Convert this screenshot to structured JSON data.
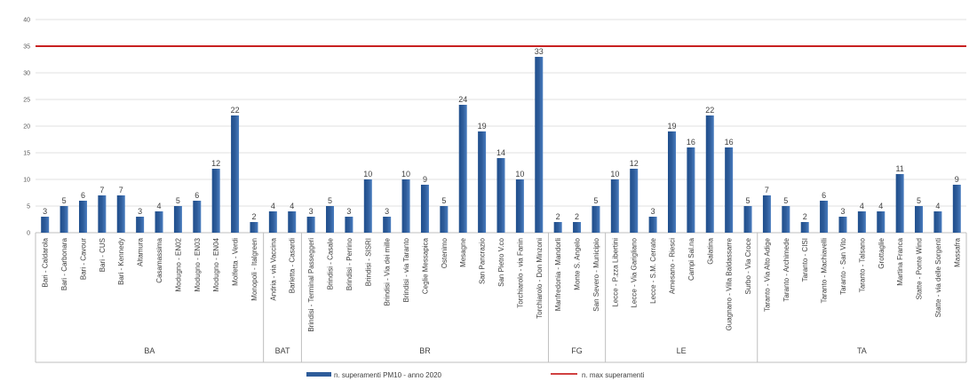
{
  "chart_data": {
    "type": "bar",
    "ylim": [
      0,
      40
    ],
    "yticks": [
      0,
      5,
      10,
      15,
      20,
      25,
      30,
      35,
      40
    ],
    "grid": true,
    "legend_position": "bottom",
    "categories": [
      "Bari - Caldarola",
      "Bari - Carbonara",
      "Bari - Cavour",
      "Bari - CUS",
      "Bari - Kennedy",
      "Altamura",
      "Casamassima",
      "Modugno - EN02",
      "Modugno - EN03",
      "Modugno - EN04",
      "Molfetta - Verdi",
      "Monopoli - Italgreen",
      "Andria - via Vaccina",
      "Barletta - Casardi",
      "Brindisi - Terminal Passeggeri",
      "Brindisi - Casale",
      "Brindisi - Perrino",
      "Brindisi - SISRI",
      "Brindisi - Via dei mille",
      "Brindisi - via Taranto",
      "Ceglie Messapica",
      "Ostenimo",
      "Mesagne",
      "San Pancrazio",
      "San Pietro V.co",
      "Torchiarolo - via Fanin",
      "Torchiarolo - Don Minzoni",
      "Manfredonia - Mandorli",
      "Monte S. Angelo",
      "San Severo - Municipio",
      "Lecce - P.zza Libertini",
      "Lecce - Via Garigliano",
      "Lecce - S.M. Cerrate",
      "Arnesano - Riesci",
      "Campi Sal.na",
      "Galatina",
      "Guagnano - Villa Baldassarre",
      "Surbo - Via Croce",
      "Taranto - Via Alto Adige",
      "Taranto - Archimede",
      "Taranto - CISI",
      "Taranto - Machiavelli",
      "Taranto - San Vito",
      "Taranto - Talsano",
      "Grottaglie",
      "Martina Franca",
      "Statte - Ponte Wind",
      "Statte - via delle Sorgenti",
      "Massafra"
    ],
    "groups": [
      {
        "label": "BA",
        "count": 12
      },
      {
        "label": "BAT",
        "count": 2
      },
      {
        "label": "BR",
        "count": 13
      },
      {
        "label": "FG",
        "count": 3
      },
      {
        "label": "LE",
        "count": 8
      },
      {
        "label": "TA",
        "count": 11
      }
    ],
    "series": [
      {
        "name": "n. superamenti PM10 - anno 2020",
        "kind": "bar",
        "color": "#2e5c9a",
        "values": [
          3,
          5,
          6,
          7,
          7,
          3,
          4,
          5,
          6,
          12,
          22,
          2,
          4,
          4,
          3,
          5,
          3,
          10,
          3,
          10,
          9,
          5,
          24,
          19,
          14,
          10,
          33,
          2,
          2,
          5,
          10,
          12,
          3,
          19,
          16,
          22,
          16,
          5,
          7,
          5,
          2,
          6,
          3,
          4,
          4,
          11,
          5,
          4,
          9
        ]
      },
      {
        "name": "n. max superamenti",
        "kind": "line",
        "color": "#c00000",
        "value": 35
      }
    ]
  }
}
